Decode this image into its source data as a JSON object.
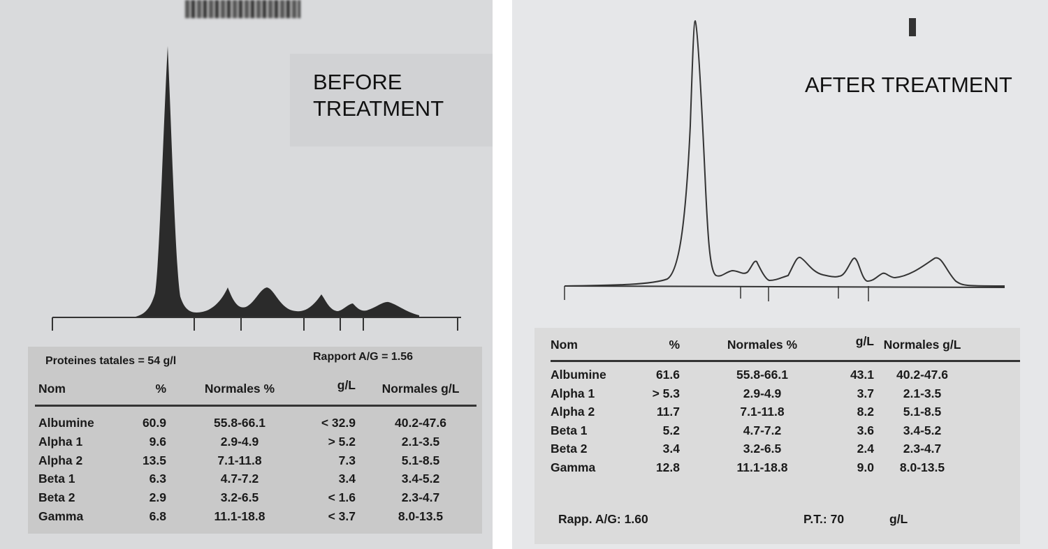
{
  "before": {
    "title_line1": "BEFORE",
    "title_line2": "TREATMENT",
    "total_proteins": "Proteines tatales = 54 g/l",
    "ag_ratio": "Rapport A/G = 1.56",
    "headers": [
      "Nom",
      "%",
      "Normales %",
      "g/L",
      "Normales g/L"
    ],
    "rows": [
      [
        "Albumine",
        "60.9",
        "55.8-66.1",
        "< 32.9",
        "40.2-47.6"
      ],
      [
        "Alpha 1",
        "9.6",
        "2.9-4.9",
        "> 5.2",
        "2.1-3.5"
      ],
      [
        "Alpha 2",
        "13.5",
        "7.1-11.8",
        "7.3",
        "5.1-8.5"
      ],
      [
        "Beta 1",
        "6.3",
        "4.7-7.2",
        "3.4",
        "3.4-5.2"
      ],
      [
        "Beta 2",
        "2.9",
        "3.2-6.5",
        "< 1.6",
        "2.3-4.7"
      ],
      [
        "Gamma",
        "6.8",
        "11.1-18.8",
        "< 3.7",
        "8.0-13.5"
      ]
    ]
  },
  "after": {
    "title": "AFTER TREATMENT",
    "headers": [
      "Nom",
      "%",
      "Normales %",
      "g/L",
      "Normales g/L"
    ],
    "rows": [
      [
        "Albumine",
        "61.6",
        "55.8-66.1",
        "43.1",
        "40.2-47.6"
      ],
      [
        "Alpha 1",
        "> 5.3",
        "2.9-4.9",
        "3.7",
        "2.1-3.5"
      ],
      [
        "Alpha 2",
        "11.7",
        "7.1-11.8",
        "8.2",
        "5.1-8.5"
      ],
      [
        "Beta 1",
        "5.2",
        "4.7-7.2",
        "3.6",
        "3.4-5.2"
      ],
      [
        "Beta 2",
        "3.4",
        "3.2-6.5",
        "2.4",
        "2.3-4.7"
      ],
      [
        "Gamma",
        "12.8",
        "11.1-18.8",
        "9.0",
        "8.0-13.5"
      ]
    ],
    "ag_ratio": "Rapp. A/G: 1.60",
    "total_proteins_label": "P.T.: 70",
    "total_proteins_unit": "g/L"
  }
}
